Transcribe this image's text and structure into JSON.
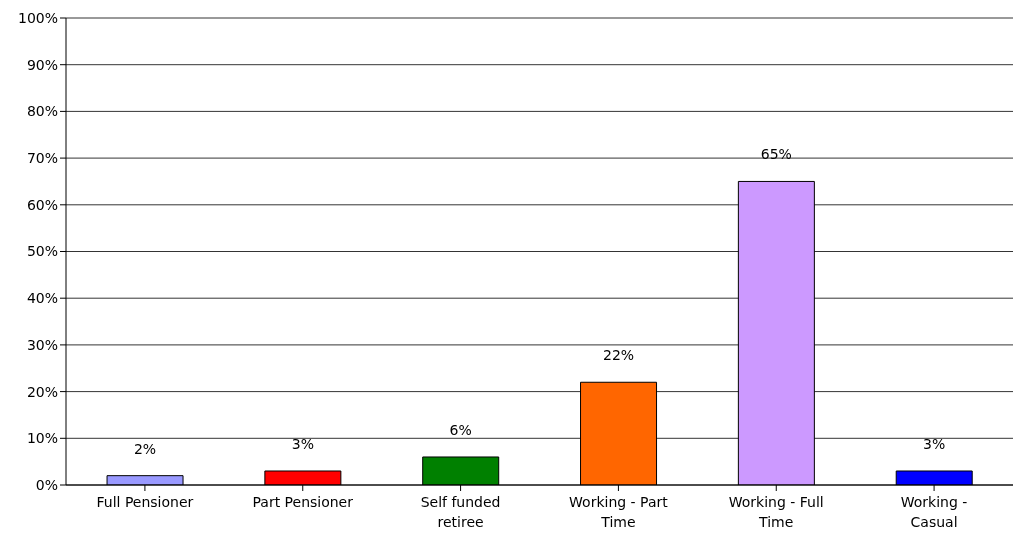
{
  "chart_data": {
    "type": "bar",
    "categories": [
      "Full Pensioner",
      "Part Pensioner",
      "Self funded retiree",
      "Working - Part Time",
      "Working - Full Time",
      "Working - Casual"
    ],
    "values": [
      2,
      3,
      6,
      22,
      65,
      3
    ],
    "colors": [
      "#9999ff",
      "#ff0000",
      "#008000",
      "#ff6600",
      "#cc99ff",
      "#0000ff"
    ],
    "value_labels": [
      "2%",
      "3%",
      "6%",
      "22%",
      "65%",
      "3%"
    ],
    "ylim": [
      0,
      100
    ],
    "yticks": [
      {
        "value": 0,
        "label": "0%"
      },
      {
        "value": 10,
        "label": "10%"
      },
      {
        "value": 20,
        "label": "20%"
      },
      {
        "value": 30,
        "label": "30%"
      },
      {
        "value": 40,
        "label": "40%"
      },
      {
        "value": 50,
        "label": "50%"
      },
      {
        "value": 60,
        "label": "60%"
      },
      {
        "value": 70,
        "label": "70%"
      },
      {
        "value": 80,
        "label": "80%"
      },
      {
        "value": 90,
        "label": "90%"
      },
      {
        "value": 100,
        "label": "100%"
      }
    ],
    "grid": "y",
    "legend": false
  }
}
